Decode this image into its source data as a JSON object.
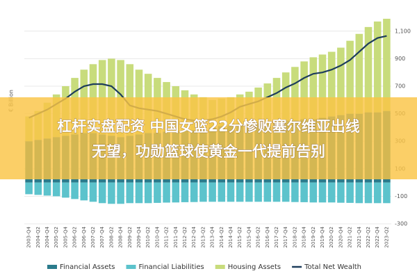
{
  "chart_data": {
    "type": "bar",
    "y_label": "€ Billion",
    "categories": [
      "2003-Q4",
      "2004-Q2",
      "2004-Q4",
      "2005-Q2",
      "2005-Q4",
      "2006-Q2",
      "2006-Q4",
      "2007-Q2",
      "2007-Q4",
      "2008-Q2",
      "2008-Q4",
      "2009-Q2",
      "2009-Q4",
      "2010-Q2",
      "2010-Q4",
      "2011-Q2",
      "2011-Q4",
      "2012-Q2",
      "2012-Q4",
      "2013-Q2",
      "2013-Q4",
      "2014-Q2",
      "2014-Q4",
      "2015-Q2",
      "2015-Q4",
      "2016-Q2",
      "2016-Q4",
      "2017-Q2",
      "2017-Q4",
      "2018-Q2",
      "2018-Q4",
      "2019-Q2",
      "2019-Q4",
      "2020-Q2",
      "2020-Q4",
      "2021-Q2",
      "2021-Q4",
      "2022-Q2",
      "2022-Q4",
      "2023-Q2"
    ],
    "series": [
      {
        "name": "Financial Assets",
        "type": "bar",
        "stack": "pos",
        "color": "#2b7b8c",
        "values": [
          300,
          310,
          320,
          330,
          340,
          350,
          360,
          360,
          350,
          340,
          330,
          340,
          350,
          360,
          360,
          370,
          370,
          380,
          380,
          390,
          400,
          410,
          410,
          420,
          420,
          430,
          430,
          440,
          450,
          450,
          460,
          460,
          470,
          480,
          490,
          500,
          500,
          510,
          510,
          520
        ]
      },
      {
        "name": "Financial Liabilities",
        "type": "bar",
        "stack": "neg",
        "color": "#5cc3cc",
        "values": [
          -85,
          -90,
          -95,
          -100,
          -110,
          -120,
          -130,
          -140,
          -150,
          -155,
          -155,
          -150,
          -150,
          -150,
          -148,
          -146,
          -145,
          -143,
          -142,
          -140,
          -140,
          -140,
          -140,
          -140,
          -140,
          -140,
          -140,
          -140,
          -140,
          -142,
          -143,
          -145,
          -145,
          -145,
          -147,
          -148,
          -150,
          -150,
          -150,
          -150
        ]
      },
      {
        "name": "Housing Assets",
        "type": "bar",
        "stack": "pos",
        "color": "#c8dc7c",
        "values": [
          180,
          210,
          260,
          310,
          360,
          410,
          460,
          500,
          540,
          560,
          560,
          520,
          470,
          430,
          400,
          360,
          330,
          290,
          260,
          230,
          200,
          200,
          210,
          220,
          240,
          260,
          290,
          320,
          350,
          390,
          420,
          450,
          460,
          470,
          490,
          530,
          580,
          620,
          660,
          670
        ]
      },
      {
        "name": "Total Net Wealth",
        "type": "line",
        "color": "#1d3d5c",
        "values": [
          470,
          500,
          530,
          570,
          610,
          660,
          700,
          715,
          715,
          700,
          640,
          560,
          540,
          530,
          520,
          500,
          480,
          460,
          450,
          450,
          460,
          480,
          510,
          550,
          570,
          590,
          620,
          650,
          690,
          720,
          760,
          790,
          800,
          820,
          850,
          890,
          950,
          1010,
          1050,
          1065
        ]
      }
    ],
    "ylim": [
      -300,
      1200
    ],
    "yticks": [
      -300,
      -100,
      100,
      300,
      500,
      700,
      900,
      {
        "value": 1100,
        "label": "1,100"
      }
    ],
    "grid": true
  },
  "banner": {
    "lines": [
      "杠杆实盘配资 中国女篮22分惨败塞尔维亚出线",
      "无望，功勋篮球使黄金一代提前告别"
    ]
  }
}
